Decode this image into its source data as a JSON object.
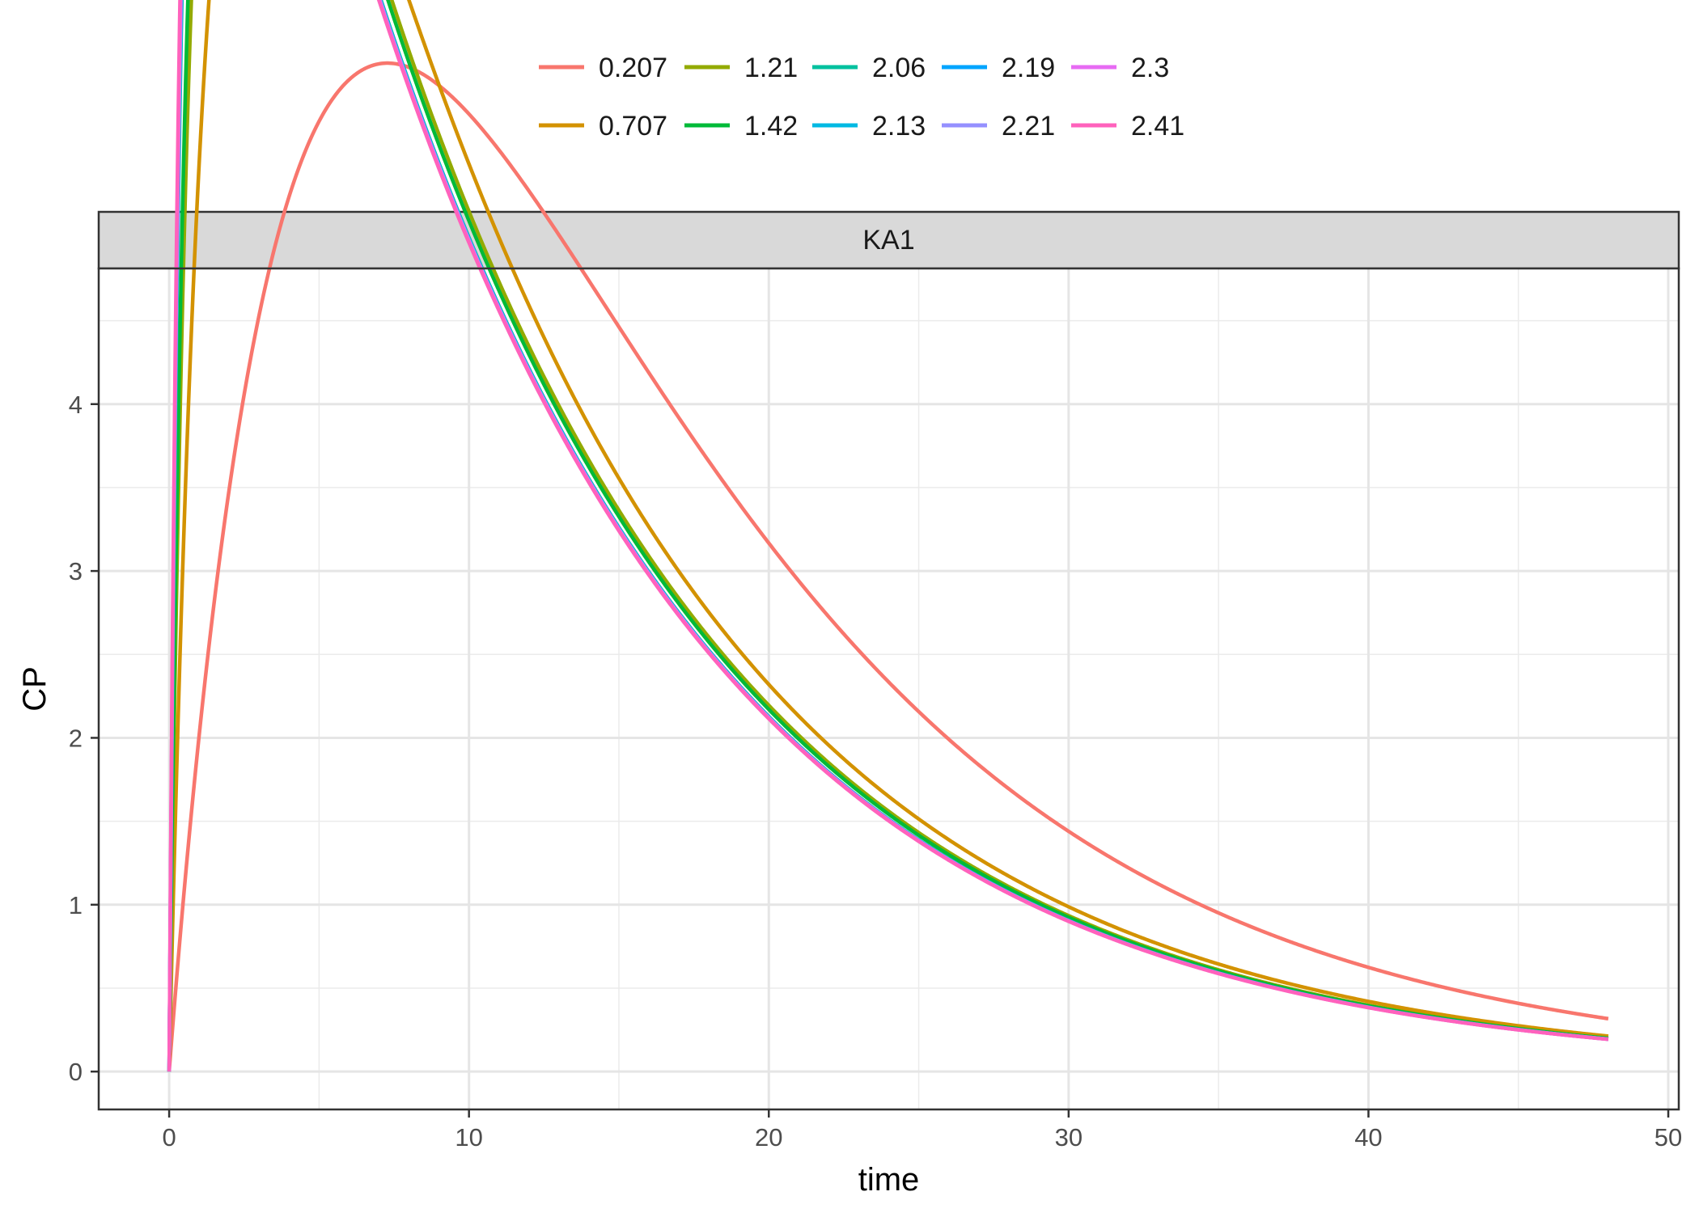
{
  "chart_data": {
    "type": "line",
    "facet_label": "KA1",
    "xlabel": "time",
    "ylabel": "CP",
    "xlim": [
      -2.35,
      50.35
    ],
    "ylim": [
      -0.227,
      4.813
    ],
    "x_ticks": [
      0,
      10,
      20,
      30,
      40,
      50
    ],
    "y_ticks": [
      0,
      1,
      2,
      3,
      4
    ],
    "x_minor": [
      5,
      15,
      25,
      35,
      45
    ],
    "y_minor": [
      0.5,
      1.5,
      2.5,
      3.5,
      4.5
    ],
    "grid": true,
    "legend_position": "top",
    "model": {
      "ke": 0.0854,
      "k": 11.255
    },
    "x_end": 48,
    "series": [
      {
        "name": "0.207",
        "ka": 0.207,
        "color": "#F8766D"
      },
      {
        "name": "0.707",
        "ka": 0.707,
        "color": "#D39200"
      },
      {
        "name": "1.21",
        "ka": 1.21,
        "color": "#93AA00"
      },
      {
        "name": "1.42",
        "ka": 1.42,
        "color": "#00BA38"
      },
      {
        "name": "2.06",
        "ka": 2.06,
        "color": "#00C19F"
      },
      {
        "name": "2.13",
        "ka": 2.13,
        "color": "#00B9E3"
      },
      {
        "name": "2.19",
        "ka": 2.19,
        "color": "#00A5FF"
      },
      {
        "name": "2.21",
        "ka": 2.21,
        "color": "#9590FF"
      },
      {
        "name": "2.3",
        "ka": 2.3,
        "color": "#E76BF3"
      },
      {
        "name": "2.41",
        "ka": 2.41,
        "color": "#FF62BC"
      }
    ]
  }
}
